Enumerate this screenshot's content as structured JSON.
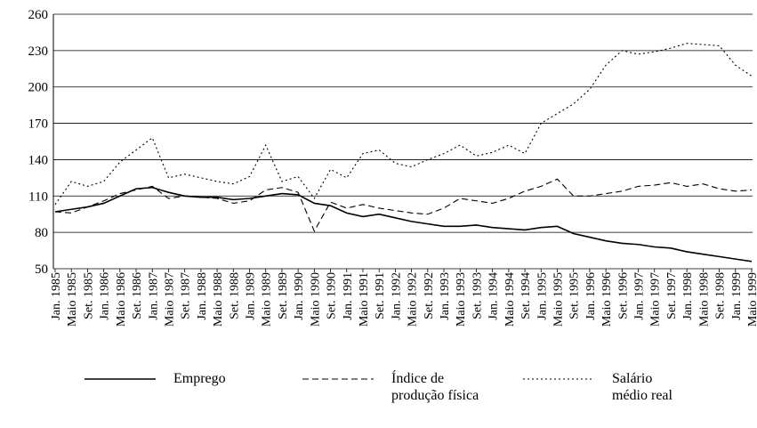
{
  "chart_data": {
    "type": "line",
    "categories": [
      "Jan. 1985",
      "Maio 1985",
      "Set. 1985",
      "Jan. 1986",
      "Maio 1986",
      "Set. 1986",
      "Jan. 1987",
      "Maio 1987",
      "Set. 1987",
      "Jan. 1988",
      "Maio 1988",
      "Set. 1988",
      "Jan. 1989",
      "Maio 1989",
      "Set. 1989",
      "Jan. 1990",
      "Maio 1990",
      "Set. 1990",
      "Jan. 1991",
      "Maio 1991",
      "Set. 1991",
      "Jan. 1992",
      "Maio 1992",
      "Set. 1992",
      "Jan. 1993",
      "Maio 1993",
      "Set. 1993",
      "Jan. 1994",
      "Maio 1994",
      "Set. 1994",
      "Jan. 1995",
      "Maio 1995",
      "Set. 1995",
      "Jan. 1996",
      "Maio 1996",
      "Set. 1996",
      "Jan. 1997",
      "Maio 1997",
      "Set. 1997",
      "Jan. 1998",
      "Maio 1998",
      "Set. 1998",
      "Jan. 1999",
      "Maio 1999"
    ],
    "series": [
      {
        "name": "Emprego",
        "color": "#000000",
        "dash": "solid",
        "values": [
          97,
          99,
          101,
          104,
          110,
          116,
          117,
          113,
          110,
          109,
          109,
          107,
          108,
          110,
          112,
          111,
          104,
          102,
          96,
          93,
          95,
          92,
          89,
          87,
          85,
          85,
          86,
          84,
          83,
          82,
          84,
          85,
          79,
          76,
          73,
          71,
          70,
          68,
          67,
          64,
          62,
          60,
          58,
          56
        ]
      },
      {
        "name": "Índice de produção física",
        "color": "#000000",
        "dash": "dashed",
        "values": [
          97,
          96,
          101,
          106,
          112,
          115,
          118,
          108,
          110,
          109,
          108,
          104,
          106,
          115,
          117,
          113,
          81,
          105,
          100,
          103,
          100,
          98,
          96,
          95,
          100,
          108,
          106,
          104,
          108,
          114,
          118,
          124,
          110,
          110,
          112,
          114,
          118,
          119,
          121,
          118,
          120,
          116,
          114,
          115
        ]
      },
      {
        "name": "Salário médio real",
        "color": "#000000",
        "dash": "dotted",
        "values": [
          103,
          122,
          118,
          122,
          138,
          148,
          158,
          125,
          128,
          125,
          122,
          120,
          126,
          152,
          122,
          126,
          108,
          132,
          125,
          145,
          148,
          137,
          134,
          140,
          145,
          152,
          143,
          146,
          152,
          145,
          170,
          178,
          186,
          198,
          218,
          230,
          227,
          229,
          232,
          236,
          235,
          234,
          218,
          209
        ]
      }
    ],
    "ylim": [
      50,
      260
    ],
    "yticks": [
      50,
      80,
      110,
      140,
      170,
      200,
      230,
      260
    ],
    "grid": true
  }
}
